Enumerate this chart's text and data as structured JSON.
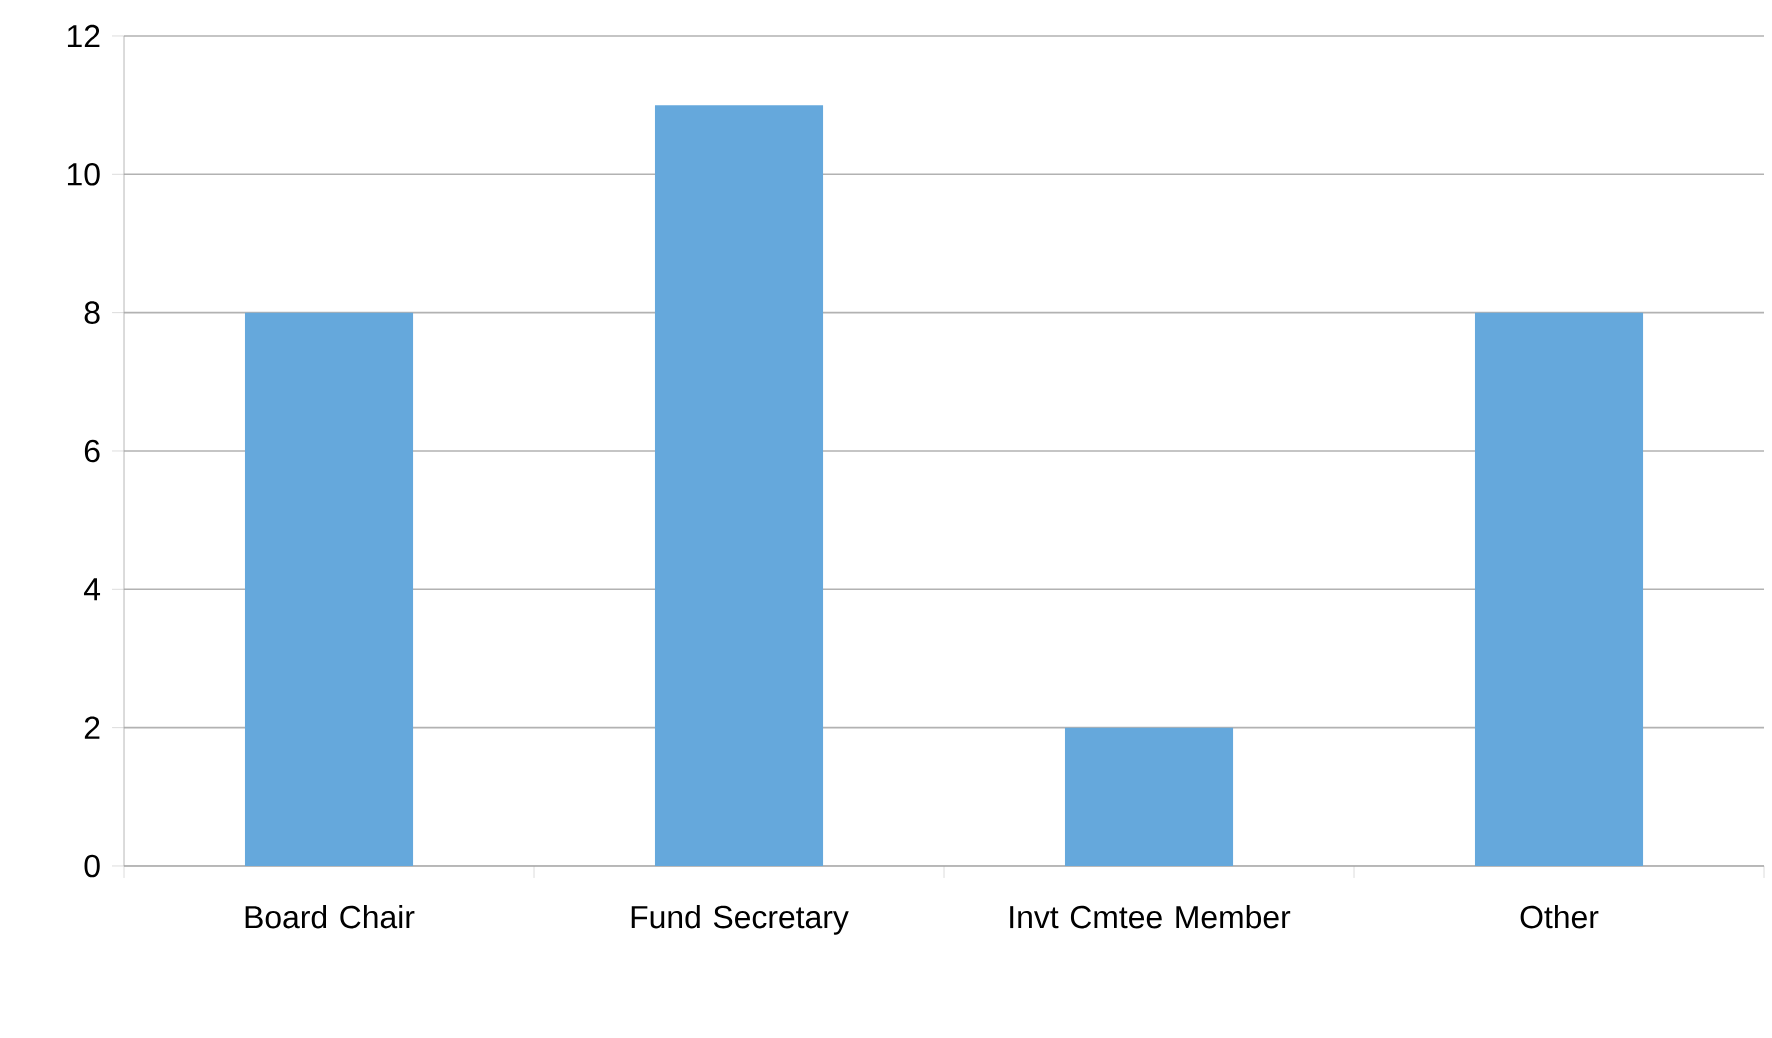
{
  "chart_data": {
    "type": "bar",
    "categories": [
      "Board Chair",
      "Fund Secretary",
      "Invt Cmtee Member",
      "Other"
    ],
    "values": [
      8,
      11,
      2,
      8
    ],
    "color": "#65a8dc",
    "ylim": [
      0,
      12
    ],
    "yticks": [
      0,
      2,
      4,
      6,
      8,
      10,
      12
    ],
    "grid": "y"
  }
}
